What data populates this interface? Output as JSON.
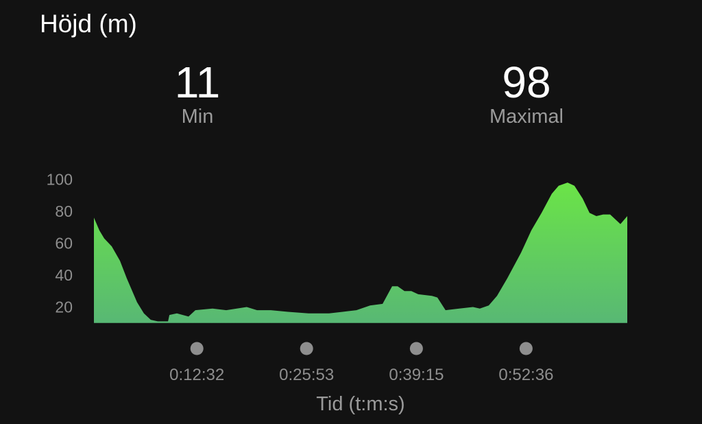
{
  "title": "Höjd (m)",
  "stats": [
    {
      "value": "11",
      "label": "Min"
    },
    {
      "value": "98",
      "label": "Maximal"
    }
  ],
  "chart_data": {
    "type": "area",
    "xlabel": "Tid (t:m:s)",
    "ylabel": "",
    "yticks": [
      20,
      40,
      60,
      80,
      100
    ],
    "ylim": [
      10,
      100
    ],
    "xlim": [
      "0:00:00",
      "1:04:55"
    ],
    "xticks": [
      "0:12:32",
      "0:25:53",
      "0:39:15",
      "0:52:36"
    ],
    "grid": false,
    "colors": {
      "fill_top": "#6be447",
      "fill_bottom": "#58b874",
      "background": "#121212",
      "tick_dot": "#8e8e8e"
    },
    "points": [
      [
        "0:00:00",
        76
      ],
      [
        "0:00:40",
        68
      ],
      [
        "0:01:15",
        63
      ],
      [
        "0:02:10",
        58
      ],
      [
        "0:03:10",
        49
      ],
      [
        "0:04:00",
        38
      ],
      [
        "0:05:15",
        23
      ],
      [
        "0:06:05",
        16
      ],
      [
        "0:06:55",
        12
      ],
      [
        "0:07:46",
        11
      ],
      [
        "0:09:01",
        11
      ],
      [
        "0:09:11",
        15
      ],
      [
        "0:10:06",
        16
      ],
      [
        "0:11:31",
        14
      ],
      [
        "0:12:21",
        18
      ],
      [
        "0:14:26",
        19
      ],
      [
        "0:16:06",
        18
      ],
      [
        "0:18:36",
        20
      ],
      [
        "0:19:51",
        18
      ],
      [
        "0:21:32",
        18
      ],
      [
        "0:23:37",
        17
      ],
      [
        "0:26:07",
        16
      ],
      [
        "0:28:37",
        16
      ],
      [
        "0:30:17",
        17
      ],
      [
        "0:31:57",
        18
      ],
      [
        "0:33:37",
        21
      ],
      [
        "0:35:08",
        22
      ],
      [
        "0:36:18",
        33
      ],
      [
        "0:36:58",
        33
      ],
      [
        "0:37:48",
        30
      ],
      [
        "0:38:38",
        30
      ],
      [
        "0:39:28",
        28
      ],
      [
        "0:41:08",
        27
      ],
      [
        "0:41:48",
        26
      ],
      [
        "0:42:48",
        18
      ],
      [
        "0:44:28",
        19
      ],
      [
        "0:46:08",
        20
      ],
      [
        "0:46:58",
        19
      ],
      [
        "0:48:03",
        21
      ],
      [
        "0:49:04",
        27
      ],
      [
        "0:50:19",
        38
      ],
      [
        "0:51:59",
        54
      ],
      [
        "0:53:14",
        68
      ],
      [
        "0:54:29",
        79
      ],
      [
        "0:55:44",
        91
      ],
      [
        "0:56:34",
        96
      ],
      [
        "0:57:39",
        98
      ],
      [
        "0:58:29",
        96
      ],
      [
        "0:59:29",
        88
      ],
      [
        "1:00:19",
        79
      ],
      [
        "1:01:09",
        77
      ],
      [
        "1:01:59",
        78
      ],
      [
        "1:02:50",
        78
      ],
      [
        "1:04:05",
        72
      ],
      [
        "1:04:55",
        77
      ]
    ]
  }
}
